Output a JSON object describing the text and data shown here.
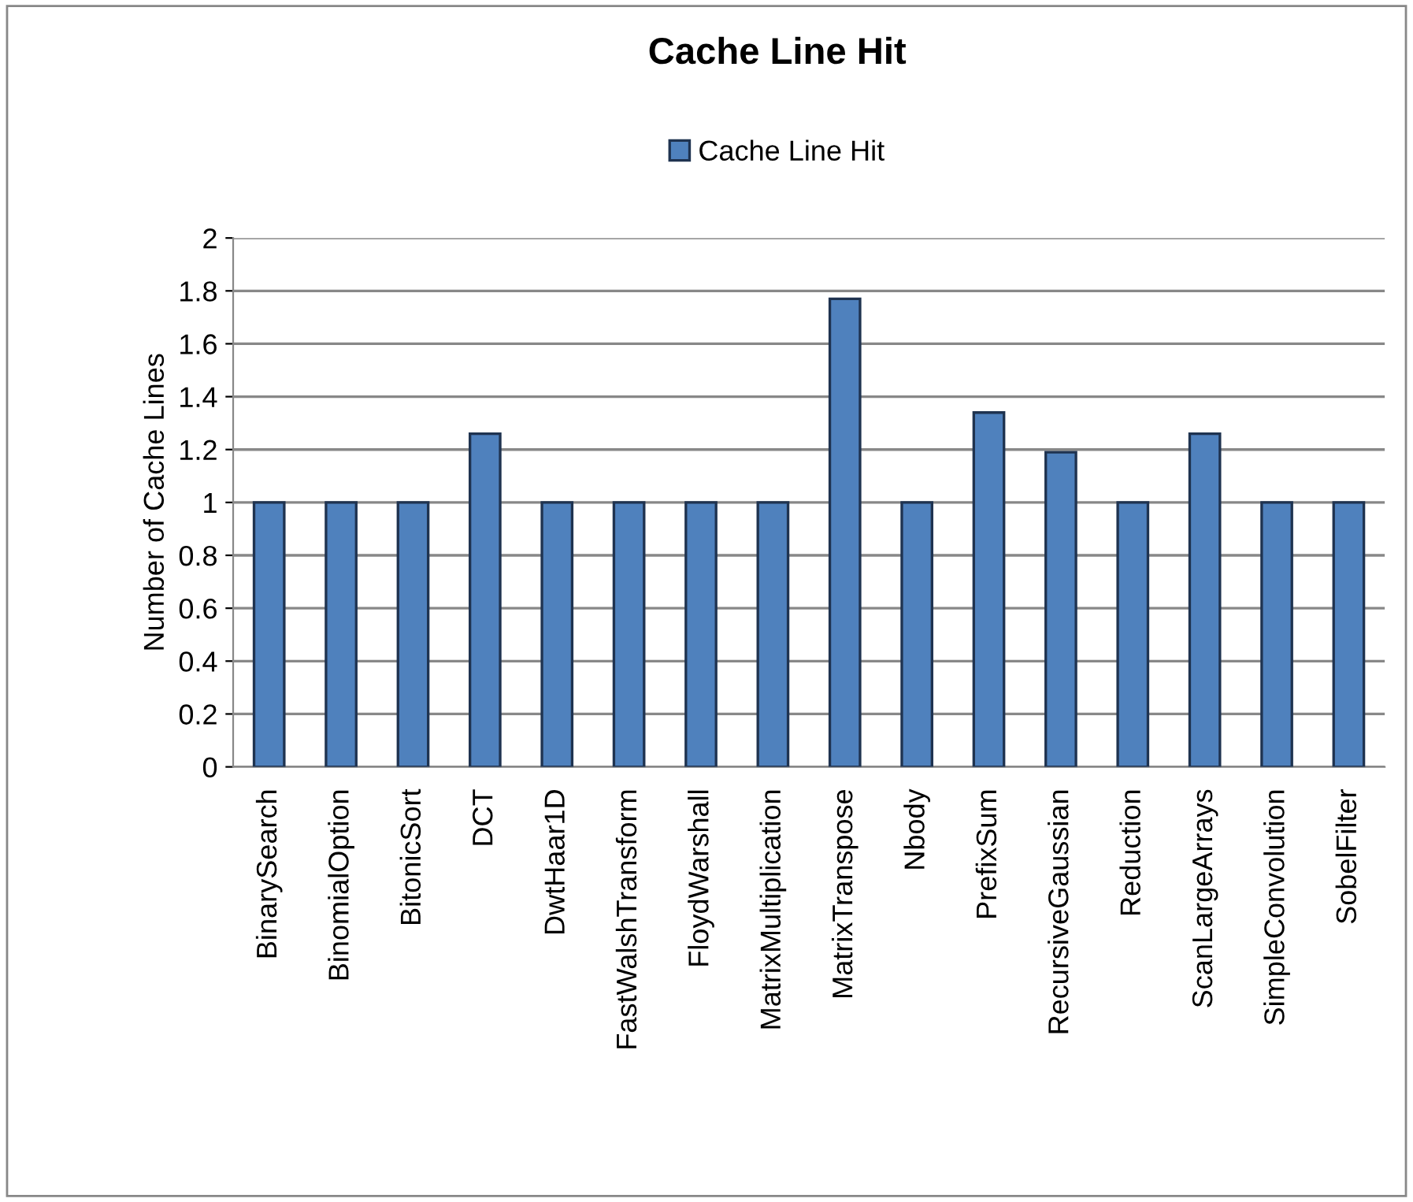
{
  "chart_data": {
    "type": "bar",
    "title": "Cache Line Hit",
    "ylabel": "Number of Cache Lines",
    "categories": [
      "BinarySearch",
      "BinomialOption",
      "BitonicSort",
      "DCT",
      "DwtHaar1D",
      "FastWalshTransform",
      "FloydWarshall",
      "MatrixMultiplication",
      "MatrixTranspose",
      "Nbody",
      "PrefixSum",
      "RecursiveGaussian",
      "Reduction",
      "ScanLargeArrays",
      "SimpleConvolution",
      "SobelFilter"
    ],
    "series": [
      {
        "name": "Cache Line Hit",
        "color": "#4f81bd",
        "values": [
          1,
          1,
          1,
          1.26,
          1,
          1,
          1,
          1,
          1.77,
          1,
          1.34,
          1.19,
          1,
          1.26,
          1,
          1
        ]
      }
    ],
    "ylim": [
      0,
      2
    ],
    "yticks": [
      0,
      {
        "value": 0.2,
        "label": "0.2"
      },
      {
        "value": 0.4,
        "label": "0.4"
      },
      {
        "value": 0.6,
        "label": "0.6"
      },
      {
        "value": 0.8,
        "label": "0.8"
      },
      1,
      {
        "value": 1.2,
        "label": "1.2"
      },
      {
        "value": 1.4,
        "label": "1.4"
      },
      {
        "value": 1.6,
        "label": "1.6"
      },
      {
        "value": 1.8,
        "label": "1.8"
      },
      2
    ],
    "grid": "y",
    "legend": "top"
  }
}
